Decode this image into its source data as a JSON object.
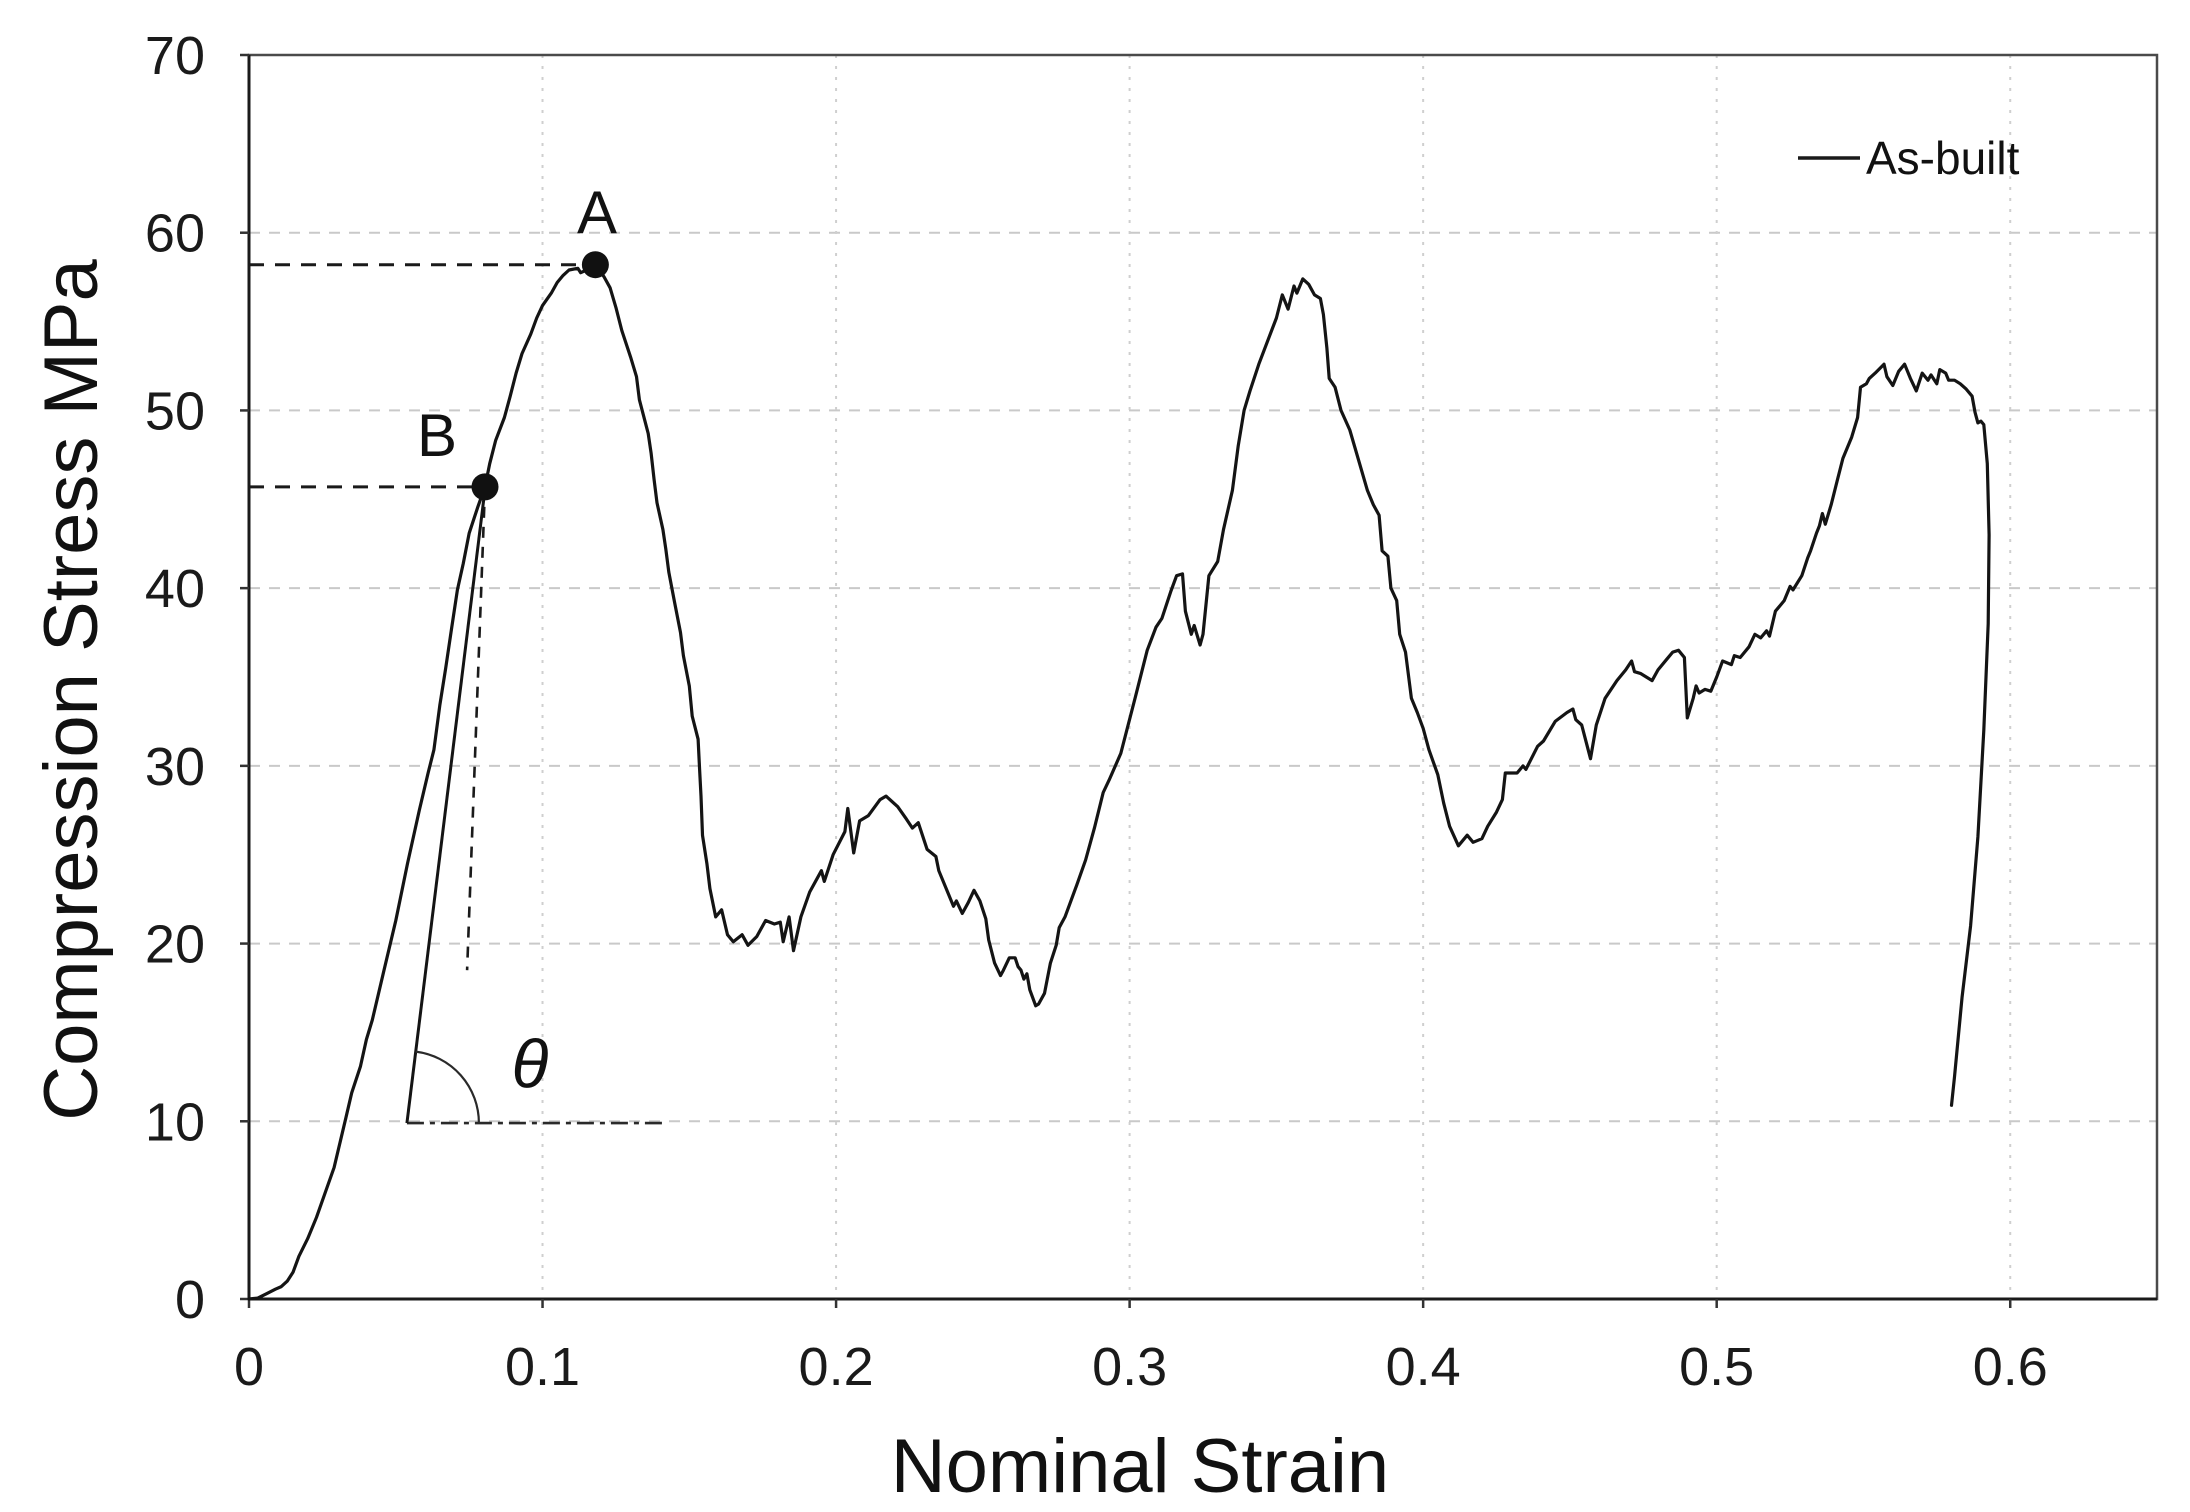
{
  "chart_data": {
    "type": "line",
    "title": "",
    "xlabel": "Nominal Strain",
    "ylabel": "Compression Stress MPa",
    "xlim": [
      0,
      0.65
    ],
    "ylim": [
      0,
      70
    ],
    "grid": true,
    "x_ticks": {
      "values": [
        0,
        0.1,
        0.2,
        0.3,
        0.4,
        0.5,
        0.6
      ],
      "labels": [
        "0",
        "0.1",
        "0.2",
        "0.3",
        "0.4",
        "0.5",
        "0.6"
      ]
    },
    "y_ticks": {
      "values": [
        0,
        10,
        20,
        30,
        40,
        50,
        60,
        70
      ],
      "labels": [
        "0",
        "10",
        "20",
        "30",
        "40",
        "50",
        "60",
        "70"
      ]
    },
    "legend": {
      "position": "top-right-inside",
      "entries": [
        {
          "label": "As-built",
          "color": "#1a1a1a"
        }
      ]
    },
    "series": [
      {
        "name": "As-built",
        "color": "#141414",
        "points": [
          [
            0.0,
            0.0
          ],
          [
            0.003,
            0.05
          ],
          [
            0.006,
            0.3
          ],
          [
            0.009,
            0.55
          ],
          [
            0.011,
            0.7
          ],
          [
            0.013,
            1.0
          ],
          [
            0.015,
            1.5
          ],
          [
            0.017,
            2.4
          ],
          [
            0.02,
            3.4
          ],
          [
            0.023,
            4.6
          ],
          [
            0.026,
            6.0
          ],
          [
            0.029,
            7.4
          ],
          [
            0.031,
            8.8
          ],
          [
            0.033,
            10.2
          ],
          [
            0.035,
            11.6
          ],
          [
            0.038,
            13.1
          ],
          [
            0.04,
            14.6
          ],
          [
            0.042,
            15.7
          ],
          [
            0.046,
            18.5
          ],
          [
            0.05,
            21.3
          ],
          [
            0.054,
            24.5
          ],
          [
            0.058,
            27.5
          ],
          [
            0.061,
            29.6
          ],
          [
            0.063,
            30.9
          ],
          [
            0.065,
            33.4
          ],
          [
            0.067,
            35.5
          ],
          [
            0.069,
            37.7
          ],
          [
            0.071,
            39.9
          ],
          [
            0.073,
            41.4
          ],
          [
            0.075,
            43.1
          ],
          [
            0.078,
            44.6
          ],
          [
            0.0804,
            45.7
          ],
          [
            0.082,
            47.0
          ],
          [
            0.084,
            48.3
          ],
          [
            0.087,
            49.6
          ],
          [
            0.089,
            50.8
          ],
          [
            0.091,
            52.1
          ],
          [
            0.093,
            53.2
          ],
          [
            0.096,
            54.3
          ],
          [
            0.098,
            55.2
          ],
          [
            0.1,
            55.9
          ],
          [
            0.103,
            56.6
          ],
          [
            0.105,
            57.2
          ],
          [
            0.107,
            57.6
          ],
          [
            0.109,
            57.9
          ],
          [
            0.112,
            58.0
          ],
          [
            0.113,
            57.75
          ],
          [
            0.115,
            57.9
          ],
          [
            0.118,
            58.2
          ],
          [
            0.121,
            57.5
          ],
          [
            0.123,
            56.9
          ],
          [
            0.125,
            55.8
          ],
          [
            0.127,
            54.5
          ],
          [
            0.13,
            53.0
          ],
          [
            0.132,
            51.9
          ],
          [
            0.133,
            50.6
          ],
          [
            0.136,
            48.7
          ],
          [
            0.137,
            47.6
          ],
          [
            0.138,
            46.1
          ],
          [
            0.139,
            44.8
          ],
          [
            0.141,
            43.3
          ],
          [
            0.142,
            42.2
          ],
          [
            0.143,
            40.9
          ],
          [
            0.145,
            39.2
          ],
          [
            0.147,
            37.5
          ],
          [
            0.148,
            36.2
          ],
          [
            0.15,
            34.5
          ],
          [
            0.151,
            32.8
          ],
          [
            0.153,
            31.5
          ],
          [
            0.1535,
            29.8
          ],
          [
            0.154,
            28.3
          ],
          [
            0.1545,
            26.1
          ],
          [
            0.156,
            24.5
          ],
          [
            0.157,
            23.1
          ],
          [
            0.159,
            21.5
          ],
          [
            0.161,
            21.9
          ],
          [
            0.163,
            20.5
          ],
          [
            0.165,
            20.1
          ],
          [
            0.168,
            20.5
          ],
          [
            0.17,
            19.9
          ],
          [
            0.173,
            20.4
          ],
          [
            0.176,
            21.3
          ],
          [
            0.179,
            21.1
          ],
          [
            0.181,
            21.2
          ],
          [
            0.182,
            20.1
          ],
          [
            0.184,
            21.5
          ],
          [
            0.1855,
            19.6
          ],
          [
            0.188,
            21.5
          ],
          [
            0.191,
            22.9
          ],
          [
            0.195,
            24.1
          ],
          [
            0.196,
            23.5
          ],
          [
            0.199,
            25.0
          ],
          [
            0.203,
            26.3
          ],
          [
            0.204,
            27.6
          ],
          [
            0.206,
            25.1
          ],
          [
            0.208,
            26.9
          ],
          [
            0.211,
            27.2
          ],
          [
            0.215,
            28.1
          ],
          [
            0.217,
            28.3
          ],
          [
            0.221,
            27.7
          ],
          [
            0.224,
            27.0
          ],
          [
            0.226,
            26.5
          ],
          [
            0.228,
            26.8
          ],
          [
            0.231,
            25.3
          ],
          [
            0.234,
            24.9
          ],
          [
            0.235,
            24.1
          ],
          [
            0.238,
            22.9
          ],
          [
            0.24,
            22.1
          ],
          [
            0.241,
            22.4
          ],
          [
            0.243,
            21.7
          ],
          [
            0.245,
            22.3
          ],
          [
            0.247,
            23.0
          ],
          [
            0.249,
            22.4
          ],
          [
            0.251,
            21.4
          ],
          [
            0.252,
            20.2
          ],
          [
            0.254,
            18.9
          ],
          [
            0.256,
            18.2
          ],
          [
            0.257,
            18.5
          ],
          [
            0.259,
            19.2
          ],
          [
            0.261,
            19.2
          ],
          [
            0.262,
            18.7
          ],
          [
            0.263,
            18.5
          ],
          [
            0.264,
            18.0
          ],
          [
            0.265,
            18.3
          ],
          [
            0.266,
            17.4
          ],
          [
            0.268,
            16.5
          ],
          [
            0.269,
            16.6
          ],
          [
            0.271,
            17.2
          ],
          [
            0.273,
            18.9
          ],
          [
            0.275,
            19.9
          ],
          [
            0.276,
            20.9
          ],
          [
            0.278,
            21.5
          ],
          [
            0.28,
            22.4
          ],
          [
            0.282,
            23.3
          ],
          [
            0.285,
            24.7
          ],
          [
            0.288,
            26.5
          ],
          [
            0.291,
            28.5
          ],
          [
            0.293,
            29.2
          ],
          [
            0.297,
            30.7
          ],
          [
            0.302,
            33.9
          ],
          [
            0.306,
            36.5
          ],
          [
            0.309,
            37.8
          ],
          [
            0.311,
            38.3
          ],
          [
            0.314,
            39.8
          ],
          [
            0.316,
            40.7
          ],
          [
            0.318,
            40.8
          ],
          [
            0.319,
            38.7
          ],
          [
            0.321,
            37.4
          ],
          [
            0.322,
            37.9
          ],
          [
            0.324,
            36.8
          ],
          [
            0.325,
            37.4
          ],
          [
            0.327,
            40.7
          ],
          [
            0.33,
            41.5
          ],
          [
            0.332,
            43.3
          ],
          [
            0.335,
            45.5
          ],
          [
            0.337,
            48.0
          ],
          [
            0.339,
            50.0
          ],
          [
            0.341,
            51.1
          ],
          [
            0.344,
            52.6
          ],
          [
            0.347,
            53.9
          ],
          [
            0.35,
            55.2
          ],
          [
            0.352,
            56.5
          ],
          [
            0.354,
            55.7
          ],
          [
            0.356,
            57.0
          ],
          [
            0.357,
            56.6
          ],
          [
            0.359,
            57.4
          ],
          [
            0.361,
            57.1
          ],
          [
            0.363,
            56.5
          ],
          [
            0.365,
            56.3
          ],
          [
            0.366,
            55.4
          ],
          [
            0.3672,
            53.5
          ],
          [
            0.368,
            51.8
          ],
          [
            0.37,
            51.3
          ],
          [
            0.372,
            50.0
          ],
          [
            0.375,
            48.9
          ],
          [
            0.378,
            47.2
          ],
          [
            0.381,
            45.5
          ],
          [
            0.383,
            44.7
          ],
          [
            0.385,
            44.1
          ],
          [
            0.386,
            42.1
          ],
          [
            0.388,
            41.8
          ],
          [
            0.389,
            40.0
          ],
          [
            0.391,
            39.3
          ],
          [
            0.392,
            37.4
          ],
          [
            0.394,
            36.4
          ],
          [
            0.396,
            33.8
          ],
          [
            0.398,
            33.0
          ],
          [
            0.4,
            32.1
          ],
          [
            0.402,
            30.9
          ],
          [
            0.405,
            29.5
          ],
          [
            0.407,
            27.9
          ],
          [
            0.409,
            26.6
          ],
          [
            0.412,
            25.5
          ],
          [
            0.415,
            26.1
          ],
          [
            0.417,
            25.7
          ],
          [
            0.42,
            25.9
          ],
          [
            0.422,
            26.6
          ],
          [
            0.425,
            27.4
          ],
          [
            0.427,
            28.1
          ],
          [
            0.428,
            29.6
          ],
          [
            0.432,
            29.6
          ],
          [
            0.434,
            30.0
          ],
          [
            0.435,
            29.8
          ],
          [
            0.439,
            31.1
          ],
          [
            0.441,
            31.4
          ],
          [
            0.445,
            32.5
          ],
          [
            0.449,
            33.0
          ],
          [
            0.451,
            33.2
          ],
          [
            0.452,
            32.6
          ],
          [
            0.454,
            32.3
          ],
          [
            0.457,
            30.4
          ],
          [
            0.459,
            32.3
          ],
          [
            0.462,
            33.8
          ],
          [
            0.466,
            34.8
          ],
          [
            0.469,
            35.4
          ],
          [
            0.471,
            35.9
          ],
          [
            0.472,
            35.3
          ],
          [
            0.474,
            35.2
          ],
          [
            0.478,
            34.8
          ],
          [
            0.48,
            35.4
          ],
          [
            0.483,
            36.0
          ],
          [
            0.485,
            36.4
          ],
          [
            0.487,
            36.5
          ],
          [
            0.489,
            36.1
          ],
          [
            0.49,
            32.7
          ],
          [
            0.492,
            33.8
          ],
          [
            0.493,
            34.5
          ],
          [
            0.494,
            34.1
          ],
          [
            0.496,
            34.3
          ],
          [
            0.498,
            34.2
          ],
          [
            0.5,
            35.0
          ],
          [
            0.502,
            35.9
          ],
          [
            0.505,
            35.7
          ],
          [
            0.506,
            36.2
          ],
          [
            0.508,
            36.1
          ],
          [
            0.511,
            36.7
          ],
          [
            0.513,
            37.4
          ],
          [
            0.515,
            37.2
          ],
          [
            0.517,
            37.6
          ],
          [
            0.518,
            37.3
          ],
          [
            0.52,
            38.7
          ],
          [
            0.523,
            39.3
          ],
          [
            0.525,
            40.1
          ],
          [
            0.526,
            39.9
          ],
          [
            0.529,
            40.7
          ],
          [
            0.531,
            41.7
          ],
          [
            0.532,
            42.1
          ],
          [
            0.534,
            43.1
          ],
          [
            0.535,
            43.5
          ],
          [
            0.536,
            44.2
          ],
          [
            0.537,
            43.6
          ],
          [
            0.539,
            44.7
          ],
          [
            0.541,
            46.0
          ],
          [
            0.543,
            47.3
          ],
          [
            0.546,
            48.5
          ],
          [
            0.548,
            49.6
          ],
          [
            0.549,
            51.3
          ],
          [
            0.551,
            51.5
          ],
          [
            0.552,
            51.8
          ],
          [
            0.554,
            52.1
          ],
          [
            0.557,
            52.6
          ],
          [
            0.558,
            51.9
          ],
          [
            0.56,
            51.4
          ],
          [
            0.562,
            52.2
          ],
          [
            0.564,
            52.6
          ],
          [
            0.566,
            51.8
          ],
          [
            0.568,
            51.1
          ],
          [
            0.57,
            52.1
          ],
          [
            0.572,
            51.7
          ],
          [
            0.573,
            52.0
          ],
          [
            0.575,
            51.5
          ],
          [
            0.576,
            52.3
          ],
          [
            0.578,
            52.1
          ],
          [
            0.579,
            51.7
          ],
          [
            0.581,
            51.7
          ],
          [
            0.583,
            51.5
          ],
          [
            0.585,
            51.2
          ],
          [
            0.587,
            50.8
          ],
          [
            0.588,
            49.9
          ],
          [
            0.589,
            49.3
          ],
          [
            0.59,
            49.4
          ],
          [
            0.591,
            49.2
          ],
          [
            0.5922,
            47.0
          ],
          [
            0.5928,
            43.0
          ],
          [
            0.5925,
            38.0
          ],
          [
            0.591,
            32.0
          ],
          [
            0.589,
            26.0
          ],
          [
            0.5865,
            21.0
          ],
          [
            0.5836,
            17.0
          ],
          [
            0.581,
            12.5
          ],
          [
            0.58,
            10.9
          ]
        ]
      }
    ],
    "annotations": {
      "point_A": {
        "label": "A",
        "strain": 0.118,
        "stress": 58.2
      },
      "point_B": {
        "label": "B",
        "strain": 0.0804,
        "stress": 45.7
      },
      "theta": {
        "label": "θ"
      },
      "tangent_line": {
        "from_strain": 0.0538,
        "from_stress": 9.9,
        "to_strain": 0.0805,
        "to_stress": 45.7
      },
      "drop_line_from_B": {
        "from_strain": 0.0804,
        "from_stress": 45.7,
        "to_strain": 0.0743,
        "to_stress": 18.5
      },
      "horizontal_reference": {
        "from_strain": 0.0538,
        "from_stress": 9.9,
        "to_strain": 0.1417,
        "to_stress": 9.9
      }
    }
  }
}
